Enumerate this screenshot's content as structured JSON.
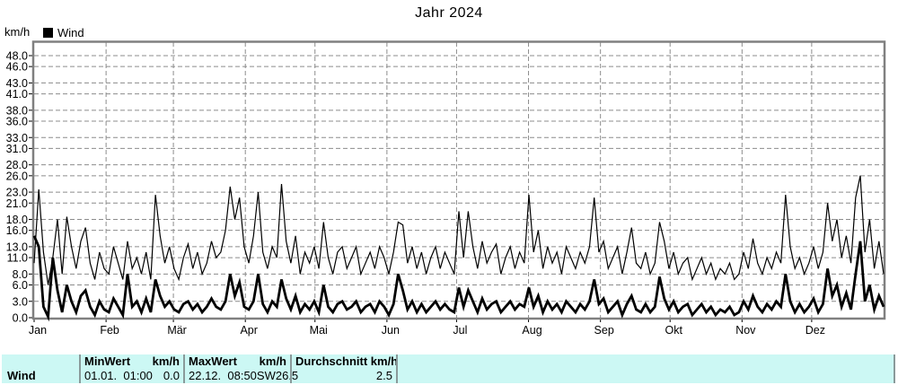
{
  "title": "Jahr 2024",
  "y_unit": "km/h",
  "legend": {
    "label": "Wind"
  },
  "colors": {
    "grid": "#8c8c8c",
    "frame": "#808080",
    "line": "#000000",
    "table_bg": "#ccf8f4",
    "table_divider": "#8a9a9a",
    "text": "#000000"
  },
  "table": {
    "row_label": "Wind",
    "min": {
      "header": "MinWert",
      "header_unit": "km/h",
      "datetime": "01.01.  01:00",
      "value": "0.0"
    },
    "max": {
      "header": "MaxWert",
      "header_unit": "km/h",
      "datetime": "22.12.  08:50",
      "direction": "SW",
      "value": "26.5"
    },
    "avg": {
      "header": "Durchschnitt km/h",
      "value": "2.5"
    }
  },
  "chart_data": {
    "type": "line",
    "title": "Jahr 2024",
    "ylabel": "km/h",
    "legend_entries": [
      "Wind"
    ],
    "grid": "dashed",
    "ylim": [
      0,
      50.5
    ],
    "y_ticks": {
      "values": [
        0,
        3,
        6,
        8,
        11,
        13,
        16,
        18,
        21,
        23,
        26,
        28,
        31,
        33,
        36,
        38,
        41,
        43,
        46,
        48
      ],
      "labels": [
        "0.0",
        "3.0",
        "6.0",
        "8.0",
        "11.0",
        "13.0",
        "16.0",
        "18.0",
        "21.0",
        "23.0",
        "26.0",
        "28.0",
        "31.0",
        "33.0",
        "36.0",
        "38.0",
        "41.0",
        "43.0",
        "46.0",
        "48.0"
      ]
    },
    "x_axis": {
      "months": [
        "Jan",
        "Feb",
        "Mär",
        "Apr",
        "Mai",
        "Jun",
        "Jul",
        "Aug",
        "Sep",
        "Okt",
        "Nov",
        "Dez"
      ],
      "month_start_days": [
        0,
        31,
        60,
        91,
        121,
        152,
        182,
        213,
        244,
        274,
        305,
        335
      ],
      "total_days": 366
    },
    "stats": {
      "min_kmh": 0.0,
      "min_time": "01.01. 01:00",
      "max_kmh": 26.5,
      "max_time": "22.12. 08:50",
      "max_direction": "SW",
      "average_kmh": 2.5
    },
    "series": [
      {
        "name": "wind-max-thin",
        "stroke_width": 1.2,
        "values": [
          10,
          23.5,
          12,
          6,
          11,
          18,
          8,
          18.5,
          13,
          9,
          14,
          16.5,
          10,
          7,
          12,
          9,
          8,
          13,
          10,
          7,
          14,
          9,
          11,
          8,
          12,
          7,
          22.5,
          15,
          10,
          13,
          9,
          7,
          11,
          13.5,
          9,
          12,
          8,
          10,
          14,
          11,
          12,
          16,
          24,
          18,
          22,
          13,
          10,
          15,
          23,
          12,
          9,
          13,
          11,
          24.5,
          14,
          10,
          15,
          8,
          12,
          10,
          13,
          9,
          17.5,
          11,
          8,
          12,
          13,
          9,
          11,
          13,
          8,
          10,
          12,
          9,
          13,
          11,
          8,
          12,
          17.5,
          17,
          10,
          13,
          9,
          12,
          8,
          11,
          13,
          9,
          12,
          10,
          8,
          19.5,
          11,
          19.5,
          13,
          9,
          14,
          10,
          12,
          13.5,
          8,
          11,
          13,
          9,
          12,
          10,
          22.5,
          12,
          16,
          9,
          13,
          10,
          12,
          8,
          13,
          11,
          9,
          12,
          10,
          13,
          22,
          12,
          14,
          9,
          11,
          13,
          8,
          12,
          16.5,
          10,
          9,
          12,
          8,
          10,
          17.5,
          14,
          9,
          12,
          8,
          10,
          11,
          7,
          9,
          11,
          8,
          10,
          7,
          9,
          8,
          10,
          7,
          8,
          12,
          9,
          14.5,
          10,
          8,
          11,
          9,
          12,
          10,
          22.5,
          13,
          9,
          11,
          8,
          10,
          13,
          9,
          12,
          21,
          14,
          18,
          11,
          15,
          10,
          22,
          26,
          12,
          18,
          9,
          14,
          8
        ]
      },
      {
        "name": "wind-mean-thick",
        "stroke_width": 2.8,
        "values": [
          15,
          13,
          2,
          0,
          11,
          5,
          1,
          6,
          3,
          1,
          4,
          5,
          2,
          0.5,
          3,
          1.5,
          1,
          3.5,
          2,
          0.5,
          8,
          2,
          3,
          1,
          3.5,
          1,
          7,
          4,
          2,
          3,
          1.5,
          1,
          2.5,
          3,
          1.5,
          2.5,
          1,
          2,
          3.5,
          2,
          1.5,
          3,
          8,
          4,
          6.5,
          2,
          1.5,
          3,
          8,
          2.5,
          1,
          3,
          2,
          7,
          3.5,
          1.5,
          4,
          1,
          2.5,
          1.5,
          3,
          1,
          6,
          2,
          1,
          2.5,
          3,
          1.5,
          2,
          3,
          1,
          2,
          2.5,
          1,
          3,
          2,
          0.5,
          2.5,
          8,
          5,
          1.5,
          3,
          1,
          2.5,
          1,
          2,
          3,
          1.5,
          2.5,
          1.5,
          1,
          5.5,
          2,
          5,
          3,
          1,
          3.5,
          1.5,
          2.5,
          3,
          1,
          2,
          3,
          1.5,
          2.5,
          2,
          5.5,
          2,
          4,
          1,
          3,
          1.5,
          2.5,
          1,
          3,
          2,
          1,
          2.5,
          1.5,
          3,
          7,
          2.5,
          3.5,
          1,
          2,
          3,
          0.5,
          2.5,
          4,
          1.5,
          1,
          2.5,
          1,
          2,
          7.5,
          3.5,
          1.5,
          3,
          1,
          2,
          2.5,
          0.5,
          1.5,
          2.5,
          1,
          2,
          0.5,
          1.5,
          1,
          2,
          0.5,
          1,
          3,
          1.5,
          4,
          2,
          1,
          2.5,
          1.5,
          3,
          2,
          8,
          3,
          1,
          2.5,
          1,
          2,
          3.5,
          1,
          2.5,
          9,
          4,
          6,
          2,
          4.5,
          1.5,
          8,
          14,
          3,
          6,
          1.5,
          4,
          2
        ]
      }
    ]
  }
}
